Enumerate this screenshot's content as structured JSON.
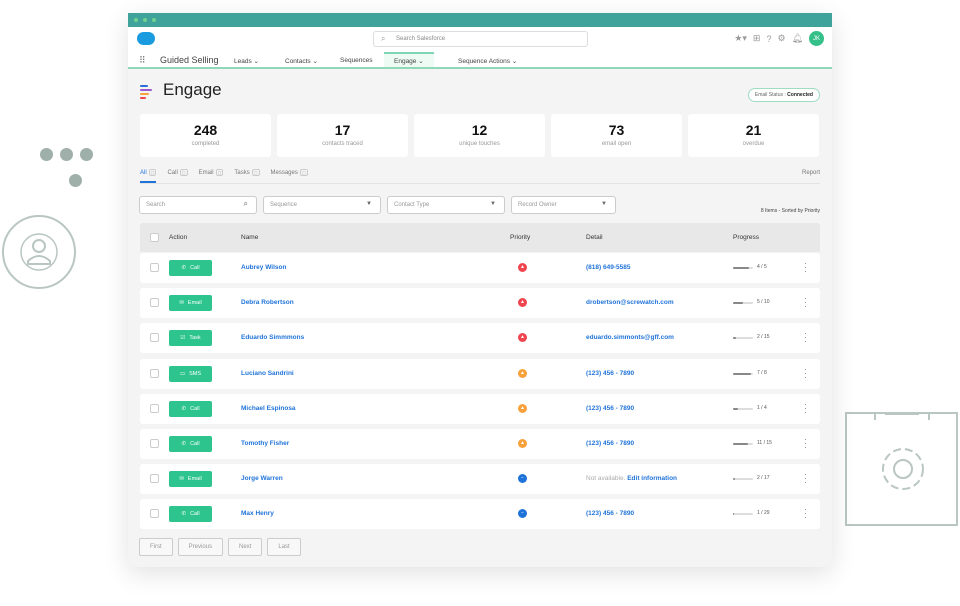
{
  "header": {
    "search_placeholder": "Search Salesforce",
    "avatar_initials": "JK"
  },
  "nav": {
    "app_name": "Guided Selling",
    "items": [
      {
        "label": "Leads",
        "dropdown": true
      },
      {
        "label": "Contacts",
        "dropdown": true
      },
      {
        "label": "Sequences",
        "dropdown": false
      },
      {
        "label": "Engage",
        "dropdown": true,
        "active": true
      },
      {
        "label": "Sequence Actions",
        "dropdown": true
      }
    ]
  },
  "page": {
    "title": "Engage",
    "email_status_label": "Email Status :",
    "email_status_value": "Connected"
  },
  "stats": [
    {
      "value": "248",
      "label": "completed"
    },
    {
      "value": "17",
      "label": "contacts traced"
    },
    {
      "value": "12",
      "label": "unique touches"
    },
    {
      "value": "73",
      "label": "email open"
    },
    {
      "value": "21",
      "label": "overdue"
    }
  ],
  "tabs": [
    {
      "label": "All",
      "active": true
    },
    {
      "label": "Call"
    },
    {
      "label": "Email"
    },
    {
      "label": "Tasks"
    },
    {
      "label": "Messages"
    }
  ],
  "report_label": "Report",
  "filters": {
    "search_placeholder": "Search",
    "sequence": "Sequence",
    "contact_type": "Contact Type",
    "record_owner": "Record Owner"
  },
  "sorted_info": "8 Items - Sorted by Priority",
  "columns": {
    "action": "Action",
    "name": "Name",
    "priority": "Priority",
    "detail": "Detail",
    "progress": "Progress"
  },
  "priority_colors": {
    "high": "#f0444f",
    "medium": "#f8a13a",
    "low": "#1f73d8"
  },
  "rows": [
    {
      "action": "Call",
      "icon": "phone-icon",
      "name": "Aubrey Wilson",
      "priority": "high",
      "detail": "(818) 649-5585",
      "done": 4,
      "total": 5,
      "progress": "4 / 5"
    },
    {
      "action": "Email",
      "icon": "mail-icon",
      "name": "Debra Robertson",
      "priority": "high",
      "detail": "drobertson@screwatch.com",
      "done": 5,
      "total": 10,
      "progress": "5 / 10"
    },
    {
      "action": "Task",
      "icon": "task-icon",
      "name": "Eduardo Simmmons",
      "priority": "high",
      "detail": "eduardo.simmonts@gff.com",
      "done": 2,
      "total": 15,
      "progress": "2 / 15"
    },
    {
      "action": "SMS",
      "icon": "sms-icon",
      "name": "Luciano Sandrini",
      "priority": "medium",
      "detail": "(123) 456 - 7890",
      "done": 7,
      "total": 8,
      "progress": "7 / 8"
    },
    {
      "action": "Call",
      "icon": "phone-icon",
      "name": "Michael Espinosa",
      "priority": "medium",
      "detail": "(123) 456 - 7890",
      "done": 1,
      "total": 4,
      "progress": "1 / 4"
    },
    {
      "action": "Call",
      "icon": "phone-icon",
      "name": "Tomothy Fisher",
      "priority": "medium",
      "detail": "(123) 456 - 7890",
      "done": 11,
      "total": 15,
      "progress": "11 / 15"
    },
    {
      "action": "Email",
      "icon": "mail-icon",
      "name": "Jorge Warren",
      "priority": "low",
      "detail_na": "Not available.",
      "detail": "Edit information",
      "done": 2,
      "total": 17,
      "progress": "2 / 17"
    },
    {
      "action": "Call",
      "icon": "phone-icon",
      "name": "Max Henry",
      "priority": "low",
      "detail": "(123) 456 - 7890",
      "done": 1,
      "total": 29,
      "progress": "1 / 29"
    }
  ],
  "pager": [
    "First",
    "Previous",
    "Next",
    "Last"
  ]
}
